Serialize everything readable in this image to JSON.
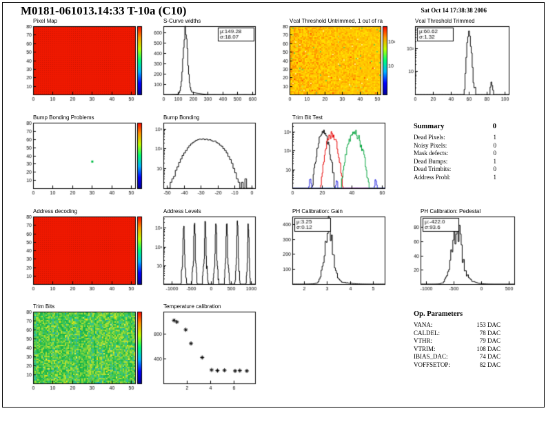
{
  "header": {
    "title": "M0181-061013.14:33 T-10a (C10)",
    "datetime": "Sat Oct 14 17:38:38 2006"
  },
  "colors": {
    "rainbow": [
      "#000099",
      "#0000ff",
      "#00b3ff",
      "#00ff73",
      "#bfff00",
      "#ff9900",
      "#ff0000"
    ],
    "accent_red": "#f01800"
  },
  "summary": {
    "title": "Summary",
    "total": "0",
    "rows": [
      {
        "label": "Dead Pixels:",
        "value": "1"
      },
      {
        "label": "Noisy Pixels:",
        "value": "0"
      },
      {
        "label": "Mask defects:",
        "value": "0"
      },
      {
        "label": "Dead Bumps:",
        "value": "1"
      },
      {
        "label": "Dead Trimbits:",
        "value": "0"
      },
      {
        "label": "Address Probl:",
        "value": "1"
      }
    ]
  },
  "op_parameters": {
    "title": "Op. Parameters",
    "rows": [
      {
        "label": "VANA:",
        "value": "153 DAC"
      },
      {
        "label": "CALDEL:",
        "value": "78 DAC"
      },
      {
        "label": "VTHR:",
        "value": "79 DAC"
      },
      {
        "label": "VTRIM:",
        "value": "108 DAC"
      },
      {
        "label": "IBIAS_DAC:",
        "value": "74 DAC"
      },
      {
        "label": "VOFFSETOP:",
        "value": "82 DAC"
      }
    ]
  },
  "chart_data": [
    {
      "id": "pixel-map",
      "type": "heatmap",
      "title": "Pixel Map",
      "style": "solid",
      "color": "#f01800",
      "dot_color": "#c81400",
      "x_range": [
        0,
        52
      ],
      "y_range": [
        0,
        80
      ],
      "x_ticks": [
        0,
        10,
        20,
        30,
        40,
        50
      ],
      "y_ticks": [
        10,
        20,
        30,
        40,
        50,
        60,
        70,
        80
      ],
      "colorbar": true,
      "margins": {
        "l": 22,
        "r": 14,
        "t": 2,
        "b": 13
      },
      "seed": 11
    },
    {
      "id": "s-curve-widths",
      "type": "hist",
      "title": "S-Curve widths",
      "x_range": [
        0,
        620
      ],
      "y_range": [
        0,
        660
      ],
      "x_ticks": [
        0,
        100,
        200,
        300,
        400,
        500,
        600
      ],
      "y_ticks": [
        100,
        200,
        300,
        400,
        500,
        600
      ],
      "nbins": 124,
      "series": [
        {
          "color": "#000000",
          "jitter": 0.08,
          "gauss": [
            {
              "mu": 149,
              "sigma": 15,
              "peak": 610
            },
            {
              "mu": 190,
              "sigma": 45,
              "peak": 18
            }
          ]
        }
      ],
      "stats": {
        "mu": "149.28",
        "sigma": "18.07",
        "pos": "right"
      },
      "seed": 21
    },
    {
      "id": "vcal-threshold-untrimmed",
      "type": "heatmap",
      "title": "Vcal Threshold Untrimmed, 1 out of ra",
      "style": "noise",
      "palette": [
        "#ff8c00",
        "#ff9d00",
        "#ffae00",
        "#ffbf00",
        "#ffd000",
        "#ffe000",
        "#ffd000",
        "#ffc400"
      ],
      "x_bias": 0.25,
      "rare": {
        "p": 0.025,
        "colors": [
          "#7ac943",
          "#ff5500",
          "#ffee77",
          "#cddc39"
        ]
      },
      "x_range": [
        0,
        52
      ],
      "y_range": [
        0,
        80
      ],
      "x_ticks": [
        0,
        10,
        20,
        30,
        40,
        50
      ],
      "y_ticks": [
        10,
        20,
        30,
        40,
        50,
        60,
        70,
        80
      ],
      "colorbar": true,
      "colorbar_labels": [
        {
          "f": 0.78,
          "label": "10²"
        },
        {
          "f": 0.42,
          "label": "10"
        }
      ],
      "margins": {
        "l": 22,
        "r": 26,
        "t": 2,
        "b": 13
      },
      "seed": 31
    },
    {
      "id": "vcal-threshold-trimmed",
      "type": "hist",
      "title": "Vcal Threshold Trimmed",
      "log_y": true,
      "x_range": [
        0,
        105
      ],
      "y_range": [
        1,
        900
      ],
      "x_ticks": [
        0,
        20,
        40,
        60,
        80,
        100
      ],
      "y_ticks": [
        {
          "v": 10,
          "label": "10"
        },
        {
          "v": 100,
          "label": "10²"
        }
      ],
      "nbins": 105,
      "series": [
        {
          "color": "#000000",
          "jitter": 0.35,
          "gauss": [
            {
              "mu": 60.6,
              "sigma": 1.4,
              "peak": 430
            },
            {
              "mu": 62,
              "sigma": 4,
              "peak": 4
            },
            {
              "mu": 86,
              "sigma": 1.5,
              "peak": 3
            }
          ]
        }
      ],
      "stats": {
        "mu": "60.62",
        "sigma": "1.32",
        "pos": "left"
      },
      "seed": 41
    },
    {
      "id": "bump-bonding-problems",
      "type": "heatmap",
      "title": "Bump Bonding Problems",
      "style": "blank",
      "x_range": [
        0,
        52
      ],
      "y_range": [
        0,
        80
      ],
      "x_ticks": [
        0,
        10,
        20,
        30,
        40,
        50
      ],
      "y_ticks": [
        10,
        20,
        30,
        40,
        50,
        60,
        70,
        80
      ],
      "points": [
        {
          "x": 30,
          "y": 33,
          "color": "#00bb44"
        }
      ],
      "colorbar": true,
      "margins": {
        "l": 22,
        "r": 14,
        "t": 2,
        "b": 13
      },
      "seed": 51
    },
    {
      "id": "bump-bonding",
      "type": "hist",
      "title": "Bump Bonding",
      "log_y": true,
      "x_range": [
        -52,
        2
      ],
      "y_range": [
        1,
        2000
      ],
      "x_ticks": [
        -50,
        -40,
        -30,
        -20,
        -10,
        0
      ],
      "y_ticks": [
        {
          "v": 10,
          "label": "10"
        },
        {
          "v": 100,
          "label": "10²"
        },
        {
          "v": 1000,
          "label": "10³"
        }
      ],
      "series": [
        {
          "color": "#000000",
          "bins": {
            "x0": -50,
            "dx": 1,
            "values": [
              0,
              0,
              2,
              3,
              4,
              8,
              12,
              20,
              30,
              45,
              60,
              80,
              110,
              140,
              170,
              200,
              230,
              260,
              280,
              300,
              290,
              310,
              280,
              300,
              270,
              280,
              250,
              230,
              240,
              200,
              180,
              150,
              130,
              100,
              80,
              60,
              40,
              28,
              18,
              10,
              6,
              3,
              2,
              1,
              2,
              1,
              3,
              0,
              0,
              0,
              0
            ]
          }
        }
      ],
      "seed": 61
    },
    {
      "id": "trim-bit-test",
      "type": "hist",
      "title": "Trim Bit Test",
      "log_y": true,
      "x_range": [
        0,
        62
      ],
      "y_range": [
        1,
        3000
      ],
      "x_ticks": [
        0,
        20,
        40,
        60
      ],
      "y_ticks": [
        {
          "v": 10,
          "label": "10"
        },
        {
          "v": 100,
          "label": "10²"
        },
        {
          "v": 1000,
          "label": "10³"
        }
      ],
      "nbins": 124,
      "series": [
        {
          "color": "#000000",
          "jitter": 0.5,
          "gauss": [
            {
              "mu": 21,
              "sigma": 2.1,
              "peak": 850
            }
          ]
        },
        {
          "color": "#e60000",
          "jitter": 0.5,
          "gauss": [
            {
              "mu": 26.5,
              "sigma": 2.1,
              "peak": 750
            }
          ]
        },
        {
          "color": "#00a33c",
          "jitter": 0.5,
          "gauss": [
            {
              "mu": 42,
              "sigma": 2.6,
              "peak": 850
            }
          ]
        },
        {
          "color": "#2222dd",
          "jitter": 0.4,
          "gauss": [
            {
              "mu": 12,
              "sigma": 0.7,
              "peak": 2.4
            },
            {
              "mu": 30,
              "sigma": 0.7,
              "peak": 2
            },
            {
              "mu": 56,
              "sigma": 0.7,
              "peak": 2.4
            }
          ]
        }
      ],
      "seed": 71
    },
    {
      "id": "address-decoding",
      "type": "heatmap",
      "title": "Address decoding",
      "style": "solid",
      "color": "#f01800",
      "dot_color": "#c81400",
      "x_range": [
        0,
        52
      ],
      "y_range": [
        0,
        80
      ],
      "x_ticks": [
        0,
        10,
        20,
        30,
        40,
        50
      ],
      "y_ticks": [
        10,
        20,
        30,
        40,
        50,
        60,
        70,
        80
      ],
      "colorbar": true,
      "margins": {
        "l": 22,
        "r": 14,
        "t": 2,
        "b": 13
      },
      "seed": 81
    },
    {
      "id": "address-levels",
      "type": "hist",
      "title": "Address Levels",
      "log_y": true,
      "x_range": [
        -1200,
        1100
      ],
      "y_range": [
        1,
        4000
      ],
      "x_ticks": [
        -1000,
        -500,
        0,
        500,
        1000
      ],
      "y_ticks": [
        {
          "v": 10,
          "label": "10"
        },
        {
          "v": 100,
          "label": "10²"
        },
        {
          "v": 1000,
          "label": "10³"
        }
      ],
      "nbins": 230,
      "series": [
        {
          "color": "#000000",
          "jitter": 0.45,
          "gauss": [
            {
              "mu": -690,
              "sigma": 8,
              "peak": 1600
            },
            {
              "mu": -690,
              "sigma": 30,
              "peak": 20
            },
            {
              "mu": -420,
              "sigma": 8,
              "peak": 2100
            },
            {
              "mu": -420,
              "sigma": 30,
              "peak": 18
            },
            {
              "mu": -150,
              "sigma": 8,
              "peak": 1900
            },
            {
              "mu": -150,
              "sigma": 30,
              "peak": 20
            },
            {
              "mu": 120,
              "sigma": 8,
              "peak": 2300
            },
            {
              "mu": 120,
              "sigma": 30,
              "peak": 16
            },
            {
              "mu": 390,
              "sigma": 8,
              "peak": 2000
            },
            {
              "mu": 390,
              "sigma": 30,
              "peak": 18
            },
            {
              "mu": 660,
              "sigma": 8,
              "peak": 2200
            },
            {
              "mu": 660,
              "sigma": 30,
              "peak": 15
            },
            {
              "mu": 930,
              "sigma": 8,
              "peak": 1400
            },
            {
              "mu": 930,
              "sigma": 25,
              "peak": 12
            }
          ]
        }
      ],
      "seed": 91
    },
    {
      "id": "ph-calibration-gain",
      "type": "hist",
      "title": "PH Calibration: Gain",
      "x_range": [
        1.5,
        5.5
      ],
      "y_range": [
        0,
        450
      ],
      "x_ticks": [
        2,
        3,
        4,
        5
      ],
      "y_ticks": [
        100,
        200,
        300,
        400
      ],
      "nbins": 90,
      "series": [
        {
          "color": "#000000",
          "jitter": 0.22,
          "gauss": [
            {
              "mu": 3.08,
              "sigma": 0.17,
              "peak": 390
            },
            {
              "mu": 3.35,
              "sigma": 0.45,
              "peak": 18
            }
          ]
        }
      ],
      "stats": {
        "mu": "3.25",
        "sigma": "0.12",
        "pos": "left"
      },
      "seed": 101
    },
    {
      "id": "ph-calibration-pedestal",
      "type": "hist",
      "title": "PH Calibration: Pedestal",
      "x_range": [
        -1100,
        600
      ],
      "y_range": [
        0,
        95
      ],
      "x_ticks": [
        -1000,
        -500,
        0,
        500
      ],
      "y_ticks": [
        20,
        40,
        60,
        80
      ],
      "nbins": 90,
      "series": [
        {
          "color": "#000000",
          "jitter": 0.3,
          "gauss": [
            {
              "mu": -445,
              "sigma": 90,
              "peak": 72
            },
            {
              "mu": -330,
              "sigma": 160,
              "peak": 7
            }
          ]
        }
      ],
      "stats": {
        "mu": "-422.0",
        "sigma": "93.6",
        "pos": "left"
      },
      "seed": 111
    },
    {
      "id": "trim-bits",
      "type": "heatmap",
      "title": "Trim Bits",
      "style": "noise",
      "palette": [
        "#18b34c",
        "#2fbf4f",
        "#4cc847",
        "#6fd040",
        "#93d939",
        "#b8e132",
        "#35c77e",
        "#2fb9a0"
      ],
      "col_streaks": 0.45,
      "rare": {
        "p": 0.02,
        "colors": [
          "#ffe600",
          "#0fa3c2",
          "#e8f04a"
        ]
      },
      "x_range": [
        0,
        52
      ],
      "y_range": [
        0,
        80
      ],
      "x_ticks": [
        0,
        10,
        20,
        30,
        40,
        50
      ],
      "y_ticks": [
        10,
        20,
        30,
        40,
        50,
        60,
        70,
        80
      ],
      "colorbar": true,
      "margins": {
        "l": 22,
        "r": 14,
        "t": 2,
        "b": 13
      },
      "seed": 121
    },
    {
      "id": "temperature-calibration",
      "type": "scatter",
      "title": "Temperature calibration",
      "x_range": [
        0,
        7.8
      ],
      "y_range": [
        0,
        1150
      ],
      "x_ticks": [
        2,
        4,
        6
      ],
      "y_ticks": [
        400,
        800
      ],
      "points_xy": [
        [
          0.9,
          1010
        ],
        [
          1.15,
          985
        ],
        [
          1.9,
          860
        ],
        [
          2.35,
          640
        ],
        [
          3.3,
          415
        ],
        [
          4.1,
          215
        ],
        [
          4.6,
          205
        ],
        [
          5.2,
          210
        ],
        [
          6.1,
          200
        ],
        [
          6.5,
          205
        ],
        [
          7.1,
          200
        ]
      ],
      "seed": 131
    }
  ]
}
